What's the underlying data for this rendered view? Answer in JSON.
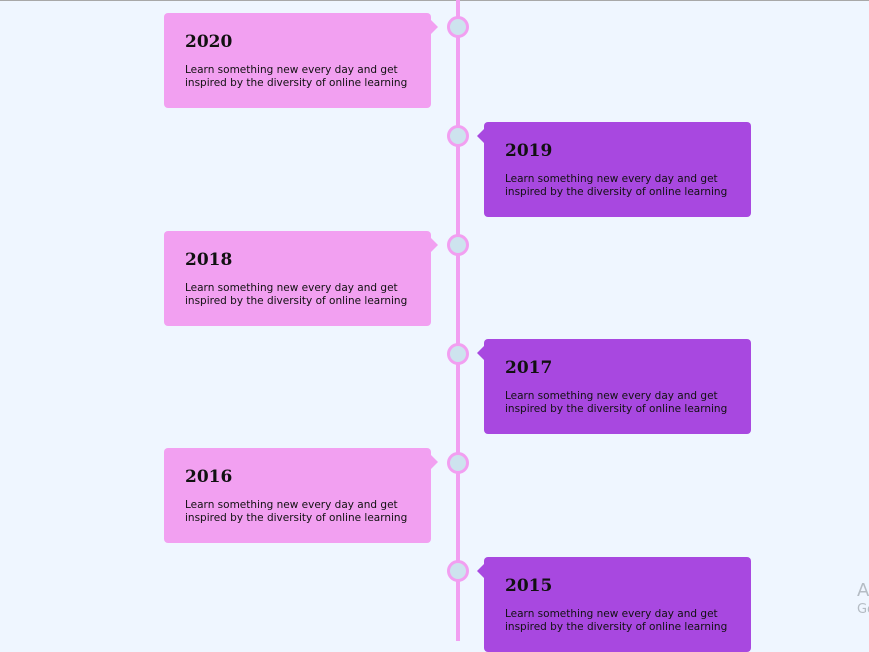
{
  "timeline": {
    "entries": [
      {
        "year": "2020",
        "description": "Learn something new every day and get inspired by the diversity of online learning"
      },
      {
        "year": "2019",
        "description": "Learn something new every day and get inspired by the diversity of online learning"
      },
      {
        "year": "2018",
        "description": "Learn something new every day and get inspired by the diversity of online learning"
      },
      {
        "year": "2017",
        "description": "Learn something new every day and get inspired by the diversity of online learning"
      },
      {
        "year": "2016",
        "description": "Learn something new every day and get inspired by the diversity of online learning"
      },
      {
        "year": "2015",
        "description": "Learn something new every day and get inspired by the diversity of online learning"
      }
    ]
  },
  "watermark": {
    "line1": "A",
    "line2": "Go"
  },
  "colors": {
    "page_background": "#eff6ff",
    "axis_line": "#f29ff1",
    "left_card": "#f2a0f1",
    "right_card": "#a848e0",
    "dot_fill": "#cde3ee",
    "dot_border": "#f29ff1"
  }
}
